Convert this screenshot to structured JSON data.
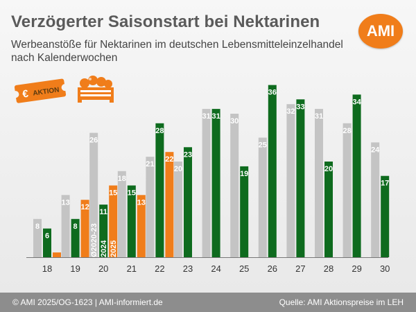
{
  "header": {
    "title": "Verzögerter Saisonstart bei Nektarinen",
    "subtitle": "Werbeanstöße für Nektarinen im deutschen Lebensmitteleinzelhandel nach Kalenderwochen",
    "logo_text": "AMI",
    "aktion_text": "AKTION",
    "aktion_currency": "€"
  },
  "colors": {
    "series_2020_23": "#c4c4c4",
    "series_2024": "#0e6b1e",
    "series_2025": "#f07d1a",
    "logo": "#f07d1a",
    "footer": "#8d8d8d"
  },
  "chart_data": {
    "type": "bar",
    "title": "Verzögerter Saisonstart bei Nektarinen",
    "subtitle": "Werbeanstöße für Nektarinen im deutschen Lebensmitteleinzelhandel nach Kalenderwochen",
    "categories": [
      "18",
      "19",
      "20",
      "21",
      "22",
      "23",
      "24",
      "25",
      "26",
      "27",
      "28",
      "29",
      "30"
    ],
    "series": [
      {
        "name": "Ø2020-23",
        "color": "#c4c4c4",
        "values": [
          8,
          13,
          26,
          18,
          21,
          20,
          31,
          30,
          25,
          32,
          31,
          28,
          24
        ]
      },
      {
        "name": "2024",
        "color": "#0e6b1e",
        "values": [
          6,
          8,
          11,
          15,
          28,
          23,
          31,
          19,
          36,
          33,
          20,
          34,
          17
        ]
      },
      {
        "name": "2025",
        "color": "#f07d1a",
        "values": [
          1,
          12,
          15,
          13,
          22,
          null,
          null,
          null,
          null,
          null,
          null,
          null,
          null
        ]
      }
    ],
    "data_labels": [
      [
        "8",
        "13",
        "26",
        "18",
        "21",
        "20",
        "31",
        "30",
        "25",
        "32",
        "31",
        "28",
        "24"
      ],
      [
        "6",
        "8",
        "11",
        "15",
        "28",
        "23",
        "31",
        "19",
        "36",
        "33",
        "20",
        "34",
        "17"
      ],
      [
        "",
        "12",
        "15",
        "13",
        "22",
        "",
        "",
        "",
        "",
        "",
        "",
        "",
        ""
      ]
    ],
    "legend_placement": "inside bars of week 20",
    "ylim": [
      0,
      36
    ],
    "grid": false,
    "xlabel": "",
    "ylabel": ""
  },
  "footer": {
    "left": "© AMI 2025/OG-1623 | AMI-informiert.de",
    "right": "Quelle: AMI Aktionspreise im LEH"
  }
}
